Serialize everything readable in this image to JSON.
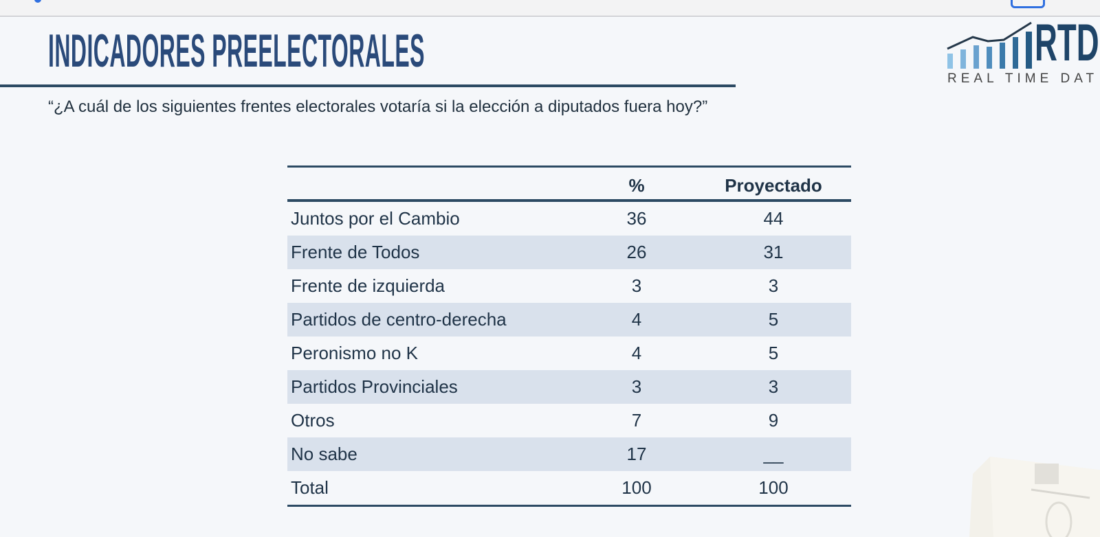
{
  "header": {
    "title": "INDICADORES PREELECTORALES",
    "question": "“¿A cuál de los siguientes frentes electorales votaría si la elección a diputados fuera hoy?”"
  },
  "logo": {
    "brand": "RTD",
    "tagline": "REAL TIME DAT"
  },
  "table": {
    "columns": [
      "",
      "%",
      "Proyectado"
    ],
    "rows": [
      {
        "label": "Juntos por el Cambio",
        "pct": "36",
        "proj": "44"
      },
      {
        "label": "Frente de Todos",
        "pct": "26",
        "proj": "31"
      },
      {
        "label": "Frente de izquierda",
        "pct": "3",
        "proj": "3"
      },
      {
        "label": "Partidos de centro-derecha",
        "pct": "4",
        "proj": "5"
      },
      {
        "label": "Peronismo no K",
        "pct": "4",
        "proj": "5"
      },
      {
        "label": "Partidos Provinciales",
        "pct": "3",
        "proj": "3"
      },
      {
        "label": "Otros",
        "pct": "7",
        "proj": "9"
      },
      {
        "label": "No sabe",
        "pct": "17",
        "proj": "__"
      },
      {
        "label": "Total",
        "pct": "100",
        "proj": "100"
      }
    ]
  },
  "colors": {
    "accent": "#2a4a7a",
    "rule": "#2c4a63",
    "stripe": "#d9e1ec"
  }
}
